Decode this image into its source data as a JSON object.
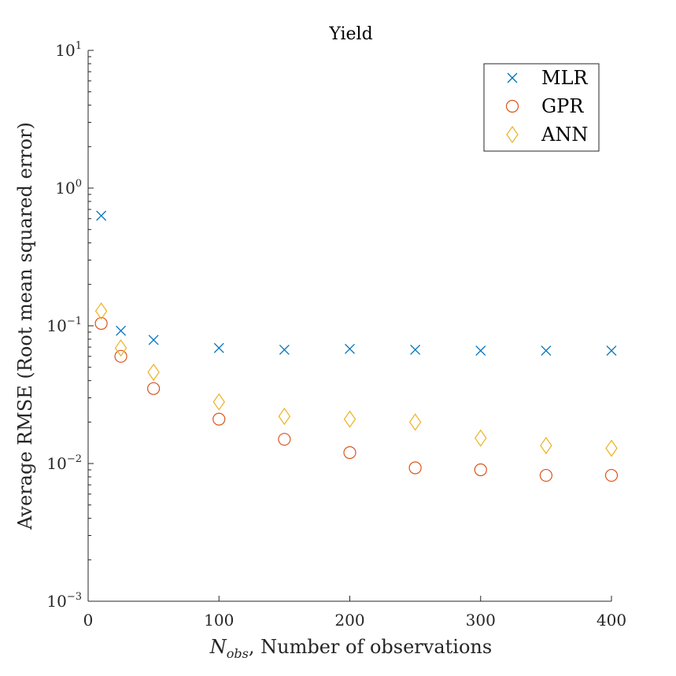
{
  "chart_data": {
    "type": "scatter",
    "title": "Yield",
    "xlabel": {
      "symbol_main": "N",
      "symbol_sub": "obs",
      "text": ", Number of observations"
    },
    "ylabel": "Average RMSE (Root mean squared error)",
    "xlim": [
      0,
      400
    ],
    "ylim": [
      0.001,
      10
    ],
    "yscale": "log",
    "grid": false,
    "legend_position": "top-right",
    "x_ticks": [
      {
        "value": 0,
        "label": "0"
      },
      {
        "value": 100,
        "label": "100"
      },
      {
        "value": 200,
        "label": "200"
      },
      {
        "value": 300,
        "label": "300"
      },
      {
        "value": 400,
        "label": "400"
      }
    ],
    "y_ticks": [
      {
        "value": 0.001,
        "base": "10",
        "exp": "−3"
      },
      {
        "value": 0.01,
        "base": "10",
        "exp": "−2"
      },
      {
        "value": 0.1,
        "base": "10",
        "exp": "−1"
      },
      {
        "value": 1,
        "base": "10",
        "exp": "0"
      },
      {
        "value": 10,
        "base": "10",
        "exp": "1"
      }
    ],
    "x": [
      10,
      25,
      50,
      100,
      150,
      200,
      250,
      300,
      350,
      400
    ],
    "series": [
      {
        "name": "MLR",
        "marker": "x",
        "color": "#0072BD",
        "values": [
          0.63,
          0.092,
          0.079,
          0.069,
          0.067,
          0.068,
          0.067,
          0.066,
          0.066,
          0.066
        ]
      },
      {
        "name": "GPR",
        "marker": "o",
        "color": "#D95319",
        "values": [
          0.104,
          0.06,
          0.035,
          0.021,
          0.015,
          0.012,
          0.0093,
          0.009,
          0.0082,
          0.0082
        ]
      },
      {
        "name": "ANN",
        "marker": "diamond",
        "color": "#EDB120",
        "values": [
          0.128,
          0.069,
          0.046,
          0.028,
          0.022,
          0.021,
          0.02,
          0.0153,
          0.0135,
          0.0129
        ]
      }
    ]
  }
}
